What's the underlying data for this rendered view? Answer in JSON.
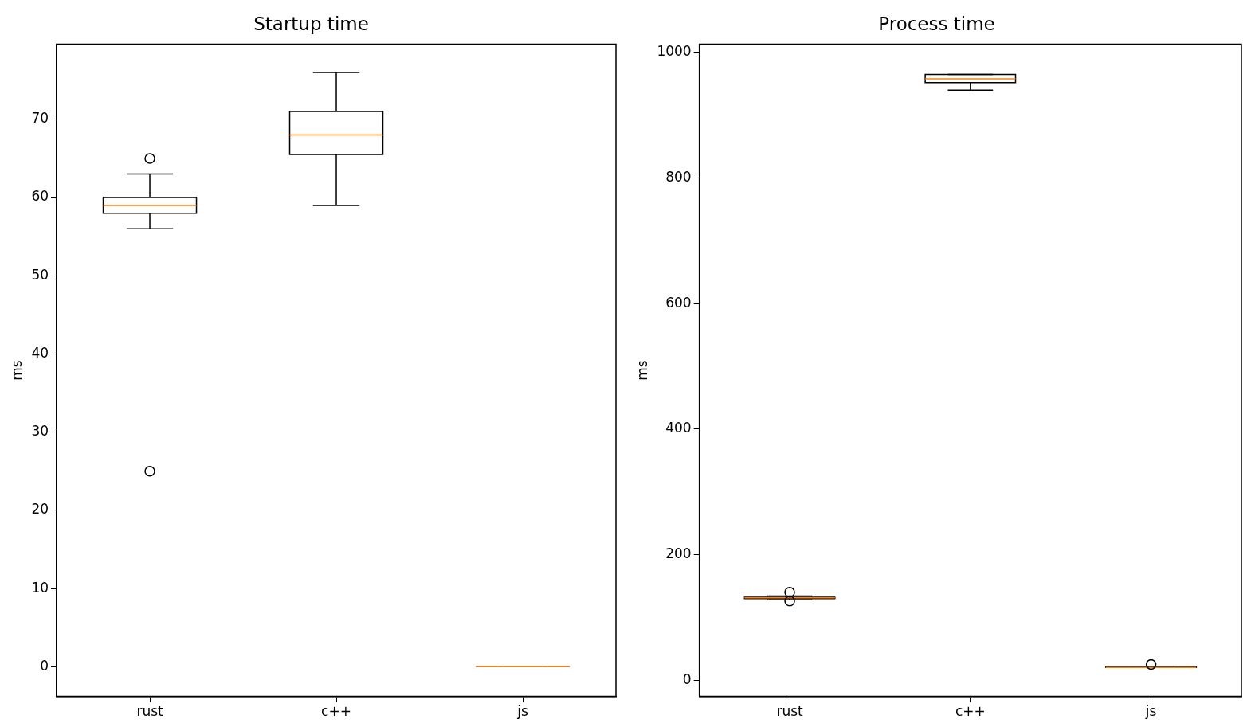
{
  "chart_data": [
    {
      "type": "box",
      "title": "Startup time",
      "ylabel": "ms",
      "categories": [
        "rust",
        "c++",
        "js"
      ],
      "ylim": [
        -3.8,
        79.6
      ],
      "yticks": [
        0,
        10,
        20,
        30,
        40,
        50,
        60,
        70
      ],
      "boxes": [
        {
          "low": 56,
          "q1": 58,
          "median": 59,
          "q3": 60,
          "high": 63,
          "outliers": [
            65,
            25
          ]
        },
        {
          "low": 59,
          "q1": 65.5,
          "median": 68,
          "q3": 71,
          "high": 76
        },
        {
          "low": 0,
          "q1": 0,
          "median": 0,
          "q3": 0,
          "high": 0
        }
      ]
    },
    {
      "type": "box",
      "title": "Process time",
      "ylabel": "ms",
      "categories": [
        "rust",
        "c++",
        "js"
      ],
      "ylim": [
        -26,
        1013
      ],
      "yticks": [
        0,
        200,
        400,
        600,
        800,
        1000
      ],
      "boxes": [
        {
          "low": 128,
          "q1": 130,
          "median": 131,
          "q3": 132,
          "high": 134,
          "outliers": [
            126,
            140
          ]
        },
        {
          "low": 940,
          "q1": 952,
          "median": 958,
          "q3": 965,
          "high": 965
        },
        {
          "low": 20,
          "q1": 20,
          "median": 20,
          "q3": 21,
          "high": 21,
          "outliers": [
            25
          ]
        }
      ]
    }
  ]
}
